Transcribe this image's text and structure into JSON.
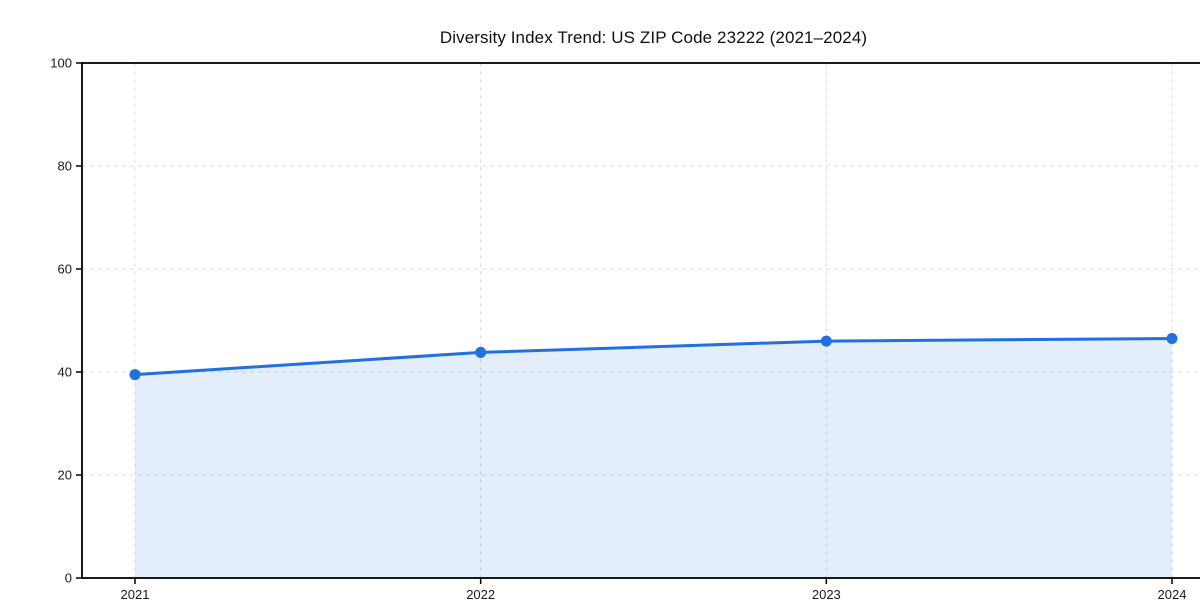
{
  "page": {
    "background": "#ffffff"
  },
  "chart_data": {
    "type": "area",
    "title": "Diversity Index Trend: US ZIP Code 23222 (2021–2024)",
    "x": [
      "2021",
      "2022",
      "2023",
      "2024"
    ],
    "series": [
      {
        "name": "Diversity Index",
        "values": [
          39.5,
          43.8,
          46.0,
          46.5
        ]
      }
    ],
    "xlabel": "",
    "ylabel": "",
    "ylim": [
      0,
      100
    ],
    "yticks": [
      0,
      20,
      40,
      60,
      80,
      100
    ],
    "grid": {
      "show": true,
      "style": "dashed",
      "color": "#dcdcdc"
    },
    "legend": {
      "show": false
    },
    "colors": {
      "line": "#2070e0",
      "fill": "rgba(32,112,224,0.12)",
      "marker": "#2070e0",
      "axis": "#000000",
      "tick_label": "#1a1a1a",
      "title": "#111111"
    }
  }
}
